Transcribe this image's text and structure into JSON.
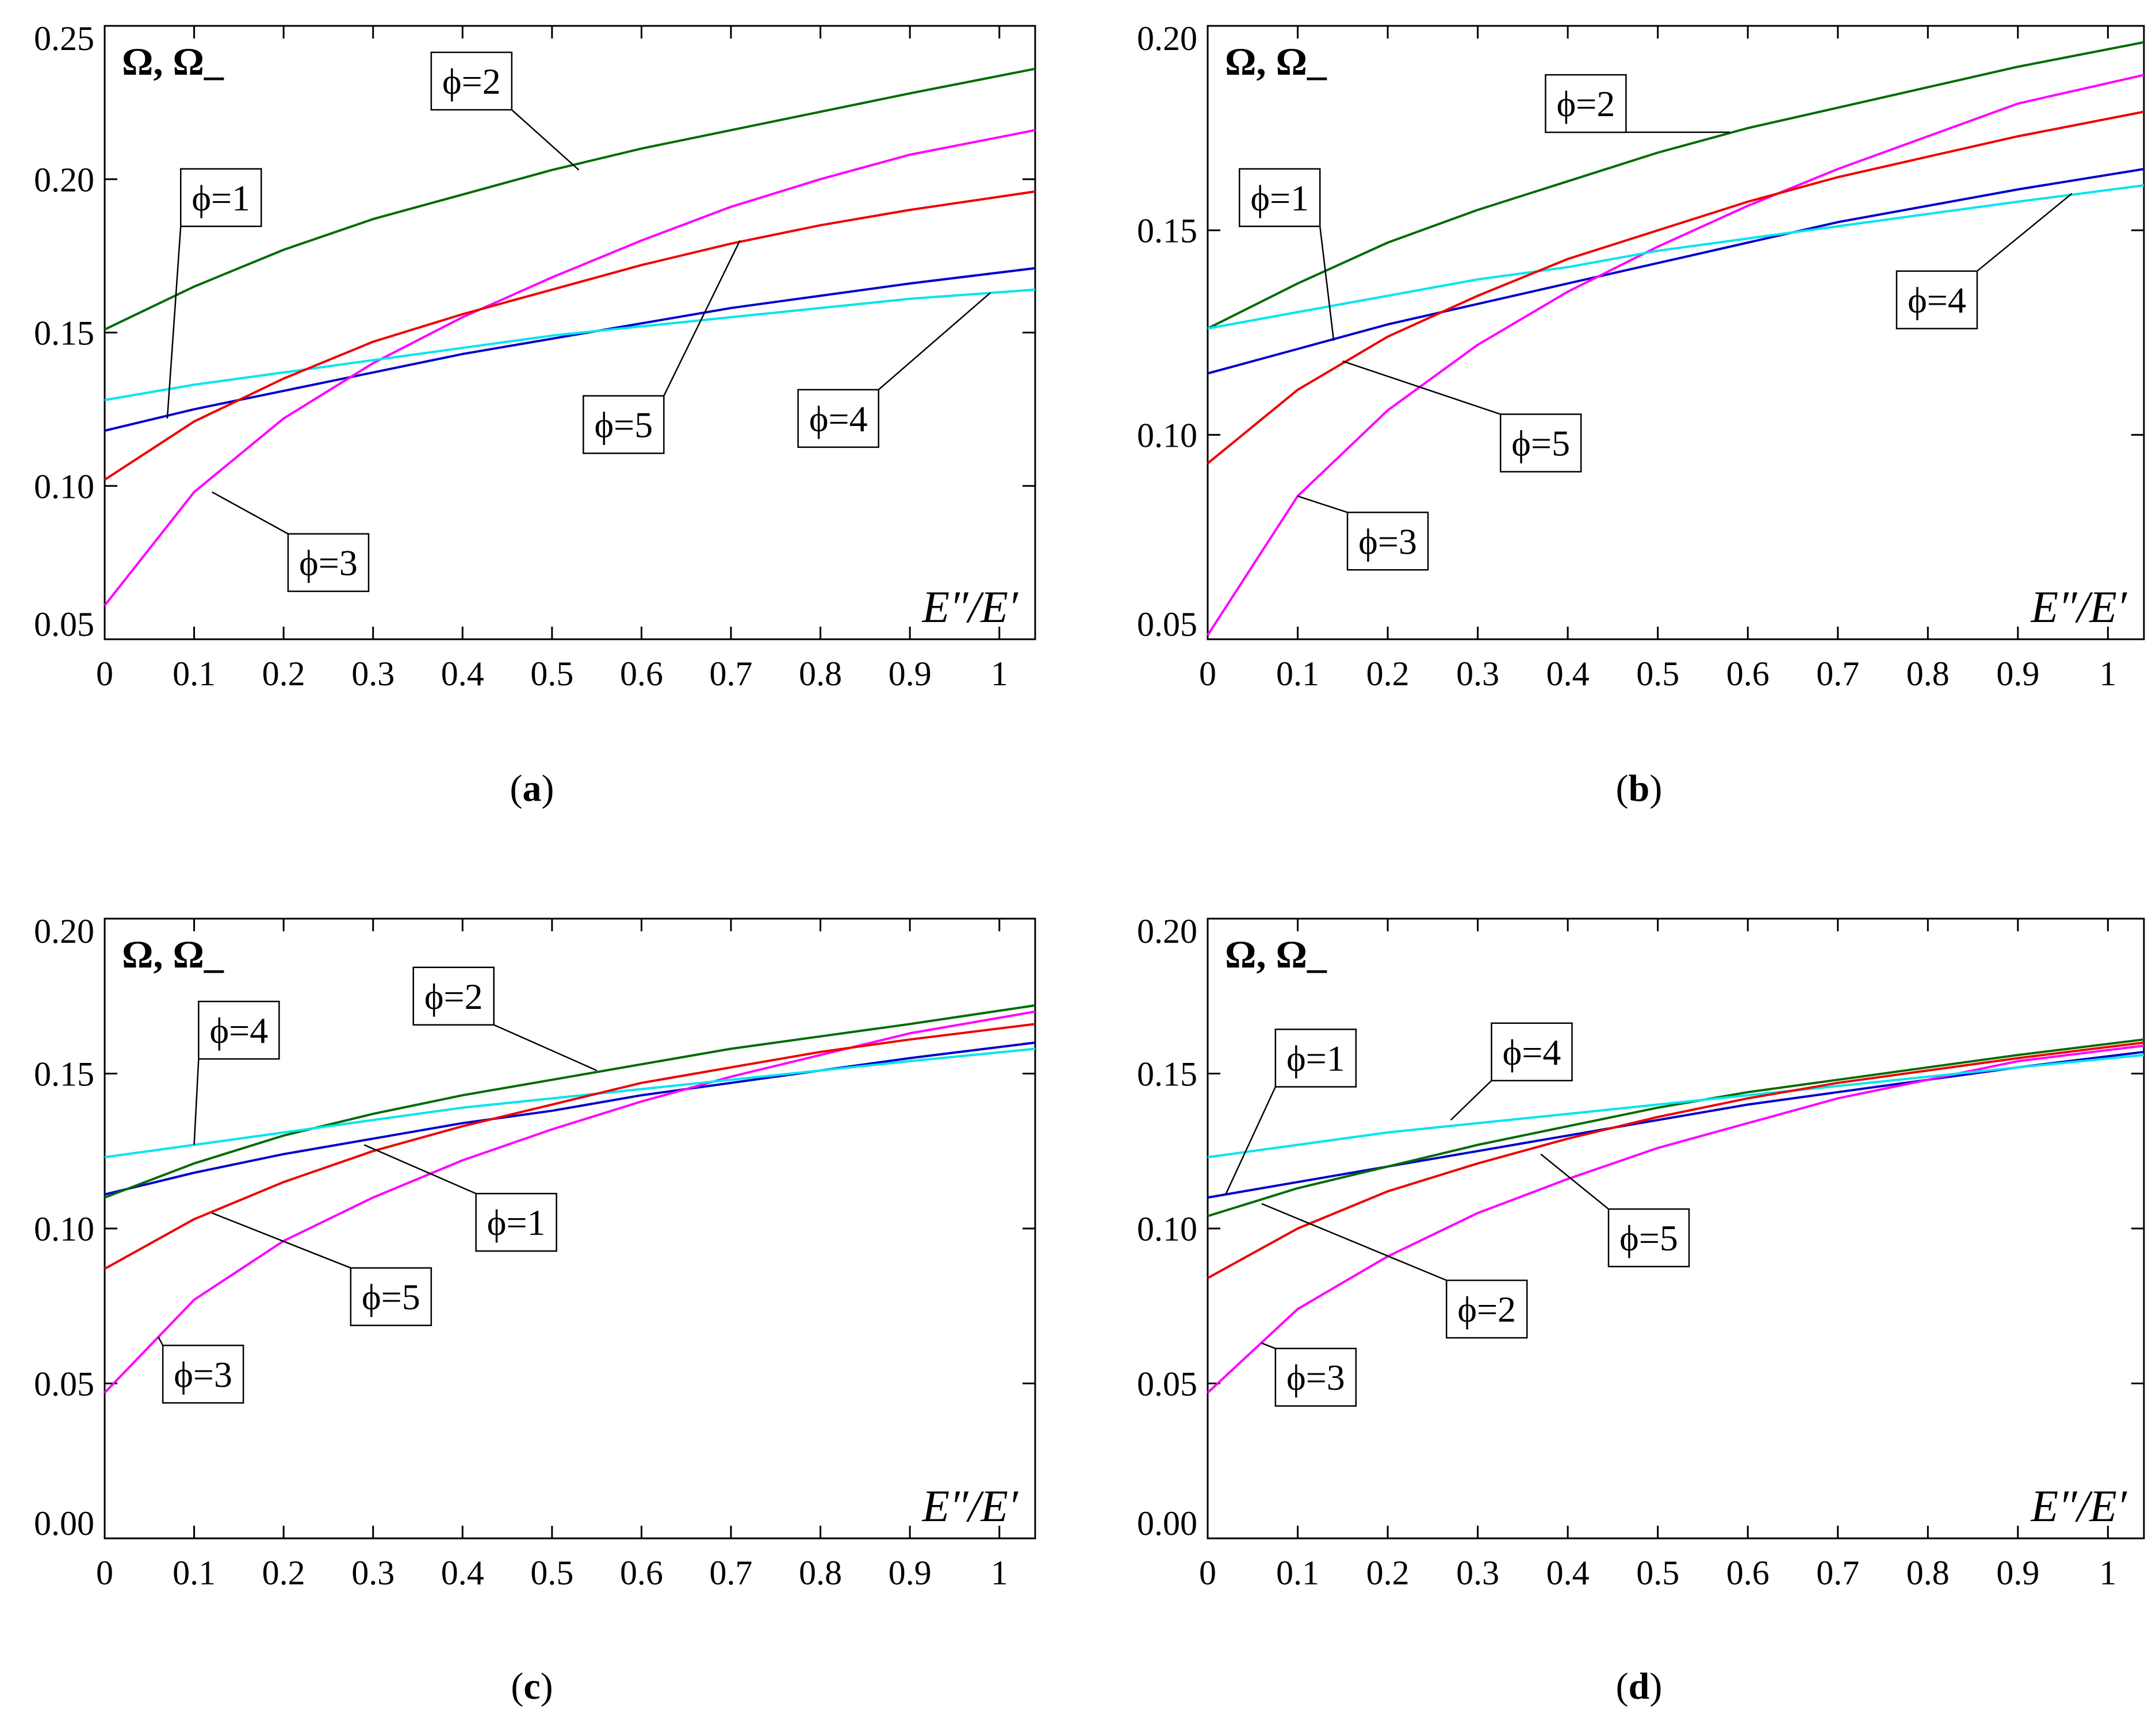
{
  "chart_data": [
    {
      "panel": "a",
      "caption": "(a)",
      "caption_letter": "a",
      "type": "line",
      "title": "Ω, Ω_",
      "xlabel": "E″/E′",
      "xlim": [
        0,
        1.04
      ],
      "ylim": [
        0.05,
        0.25
      ],
      "yticks": [
        "0.05",
        "0.10",
        "0.15",
        "0.20",
        "0.25"
      ],
      "xticks": [
        "0",
        "0.1",
        "0.2",
        "0.3",
        "0.4",
        "0.5",
        "0.6",
        "0.7",
        "0.8",
        "0.9",
        "1"
      ],
      "x": [
        0,
        0.1,
        0.2,
        0.3,
        0.4,
        0.5,
        0.6,
        0.7,
        0.8,
        0.9,
        1.04
      ],
      "series": [
        {
          "name": "ϕ=1",
          "color": "#0000cc",
          "values": [
            0.118,
            0.125,
            0.131,
            0.137,
            0.143,
            0.148,
            0.153,
            0.158,
            0.162,
            0.166,
            0.171
          ]
        },
        {
          "name": "ϕ=2",
          "color": "#006b00",
          "values": [
            0.151,
            0.165,
            0.177,
            0.187,
            0.195,
            0.203,
            0.21,
            0.216,
            0.222,
            0.228,
            0.236
          ]
        },
        {
          "name": "ϕ=3",
          "color": "#ff00ff",
          "values": [
            0.061,
            0.098,
            0.122,
            0.14,
            0.155,
            0.168,
            0.18,
            0.191,
            0.2,
            0.208,
            0.216
          ]
        },
        {
          "name": "ϕ=4",
          "color": "#00e5ee",
          "values": [
            0.128,
            0.133,
            0.137,
            0.141,
            0.145,
            0.149,
            0.152,
            0.155,
            0.158,
            0.161,
            0.164
          ]
        },
        {
          "name": "ϕ=5",
          "color": "#ee0000",
          "values": [
            0.102,
            0.121,
            0.135,
            0.147,
            0.156,
            0.164,
            0.172,
            0.179,
            0.185,
            0.19,
            0.196
          ]
        }
      ],
      "annotations": [
        {
          "text": "ϕ=1",
          "series": "ϕ=1",
          "x": 0.07,
          "y": 0.122,
          "tx": 0.13,
          "ty": 0.194
        },
        {
          "text": "ϕ=2",
          "series": "ϕ=2",
          "x": 0.53,
          "y": 0.203,
          "tx": 0.41,
          "ty": 0.232
        },
        {
          "text": "ϕ=3",
          "series": "ϕ=3",
          "x": 0.12,
          "y": 0.098,
          "tx": 0.25,
          "ty": 0.075
        },
        {
          "text": "ϕ=4",
          "series": "ϕ=4",
          "x": 0.99,
          "y": 0.163,
          "tx": 0.82,
          "ty": 0.122
        },
        {
          "text": "ϕ=5",
          "series": "ϕ=5",
          "x": 0.71,
          "y": 0.18,
          "tx": 0.58,
          "ty": 0.12
        }
      ]
    },
    {
      "panel": "b",
      "caption": "(b)",
      "caption_letter": "b",
      "type": "line",
      "title": "Ω, Ω_",
      "xlabel": "E″/E′",
      "xlim": [
        0,
        1.04
      ],
      "ylim": [
        0.05,
        0.2
      ],
      "yticks": [
        "0.05",
        "0.10",
        "0.15",
        "0.20"
      ],
      "xticks": [
        "0",
        "0.1",
        "0.2",
        "0.3",
        "0.4",
        "0.5",
        "0.6",
        "0.7",
        "0.8",
        "0.9",
        "1"
      ],
      "x": [
        0,
        0.1,
        0.2,
        0.3,
        0.4,
        0.5,
        0.6,
        0.7,
        0.8,
        0.9,
        1.04
      ],
      "series": [
        {
          "name": "ϕ=1",
          "color": "#0000cc",
          "values": [
            0.115,
            0.121,
            0.127,
            0.132,
            0.137,
            0.142,
            0.147,
            0.152,
            0.156,
            0.16,
            0.165
          ]
        },
        {
          "name": "ϕ=2",
          "color": "#006b00",
          "values": [
            0.126,
            0.137,
            0.147,
            0.155,
            0.162,
            0.169,
            0.175,
            0.18,
            0.185,
            0.19,
            0.196
          ]
        },
        {
          "name": "ϕ=3",
          "color": "#ff00ff",
          "values": [
            0.051,
            0.085,
            0.106,
            0.122,
            0.135,
            0.146,
            0.156,
            0.165,
            0.173,
            0.181,
            0.188
          ]
        },
        {
          "name": "ϕ=4",
          "color": "#00e5ee",
          "values": [
            0.126,
            0.13,
            0.134,
            0.138,
            0.141,
            0.145,
            0.148,
            0.151,
            0.154,
            0.157,
            0.161
          ]
        },
        {
          "name": "ϕ=5",
          "color": "#ee0000",
          "values": [
            0.093,
            0.111,
            0.124,
            0.134,
            0.143,
            0.15,
            0.157,
            0.163,
            0.168,
            0.173,
            0.179
          ]
        }
      ],
      "annotations": [
        {
          "text": "ϕ=1",
          "series": "ϕ=1",
          "x": 0.14,
          "y": 0.123,
          "tx": 0.08,
          "ty": 0.158
        },
        {
          "text": "ϕ=2",
          "series": "ϕ=2",
          "x": 0.58,
          "y": 0.174,
          "tx": 0.42,
          "ty": 0.181
        },
        {
          "text": "ϕ=3",
          "series": "ϕ=3",
          "x": 0.1,
          "y": 0.085,
          "tx": 0.2,
          "ty": 0.074
        },
        {
          "text": "ϕ=4",
          "series": "ϕ=4",
          "x": 0.96,
          "y": 0.159,
          "tx": 0.81,
          "ty": 0.133
        },
        {
          "text": "ϕ=5",
          "series": "ϕ=5",
          "x": 0.15,
          "y": 0.118,
          "tx": 0.37,
          "ty": 0.098
        }
      ]
    },
    {
      "panel": "c",
      "caption": "(c)",
      "caption_letter": "c",
      "type": "line",
      "title": "Ω, Ω_",
      "xlabel": "E″/E′",
      "xlim": [
        0,
        1.04
      ],
      "ylim": [
        0.0,
        0.2
      ],
      "yticks": [
        "0.00",
        "0.05",
        "0.10",
        "0.15",
        "0.20"
      ],
      "xticks": [
        "0",
        "0.1",
        "0.2",
        "0.3",
        "0.4",
        "0.5",
        "0.6",
        "0.7",
        "0.8",
        "0.9",
        "1"
      ],
      "x": [
        0,
        0.1,
        0.2,
        0.3,
        0.4,
        0.5,
        0.6,
        0.7,
        0.8,
        0.9,
        1.04
      ],
      "series": [
        {
          "name": "ϕ=1",
          "color": "#0000cc",
          "values": [
            0.111,
            0.118,
            0.124,
            0.129,
            0.134,
            0.138,
            0.143,
            0.147,
            0.151,
            0.155,
            0.16
          ]
        },
        {
          "name": "ϕ=2",
          "color": "#006b00",
          "values": [
            0.11,
            0.121,
            0.13,
            0.137,
            0.143,
            0.148,
            0.153,
            0.158,
            0.162,
            0.166,
            0.172
          ]
        },
        {
          "name": "ϕ=3",
          "color": "#ff00ff",
          "values": [
            0.047,
            0.077,
            0.096,
            0.11,
            0.122,
            0.132,
            0.141,
            0.149,
            0.156,
            0.163,
            0.17
          ]
        },
        {
          "name": "ϕ=4",
          "color": "#00e5ee",
          "values": [
            0.123,
            0.127,
            0.131,
            0.135,
            0.139,
            0.142,
            0.145,
            0.148,
            0.151,
            0.154,
            0.158
          ]
        },
        {
          "name": "ϕ=5",
          "color": "#ee0000",
          "values": [
            0.087,
            0.103,
            0.115,
            0.125,
            0.133,
            0.14,
            0.147,
            0.152,
            0.157,
            0.161,
            0.166
          ]
        }
      ],
      "annotations": [
        {
          "text": "ϕ=1",
          "series": "ϕ=1",
          "x": 0.29,
          "y": 0.127,
          "tx": 0.46,
          "ty": 0.102
        },
        {
          "text": "ϕ=2",
          "series": "ϕ=2",
          "x": 0.55,
          "y": 0.151,
          "tx": 0.39,
          "ty": 0.175
        },
        {
          "text": "ϕ=3",
          "series": "ϕ=3",
          "x": 0.06,
          "y": 0.065,
          "tx": 0.11,
          "ty": 0.053
        },
        {
          "text": "ϕ=4",
          "series": "ϕ=4",
          "x": 0.1,
          "y": 0.127,
          "tx": 0.15,
          "ty": 0.164
        },
        {
          "text": "ϕ=5",
          "series": "ϕ=5",
          "x": 0.12,
          "y": 0.105,
          "tx": 0.32,
          "ty": 0.078
        }
      ]
    },
    {
      "panel": "d",
      "caption": "(d)",
      "caption_letter": "d",
      "type": "line",
      "title": "Ω, Ω_",
      "xlabel": "E″/E′",
      "xlim": [
        0,
        1.04
      ],
      "ylim": [
        0.0,
        0.2
      ],
      "yticks": [
        "0.00",
        "0.05",
        "0.10",
        "0.15",
        "0.20"
      ],
      "xticks": [
        "0",
        "0.1",
        "0.2",
        "0.3",
        "0.4",
        "0.5",
        "0.6",
        "0.7",
        "0.8",
        "0.9",
        "1"
      ],
      "x": [
        0,
        0.1,
        0.2,
        0.3,
        0.4,
        0.5,
        0.6,
        0.7,
        0.8,
        0.9,
        1.04
      ],
      "series": [
        {
          "name": "ϕ=1",
          "color": "#0000cc",
          "values": [
            0.11,
            0.115,
            0.12,
            0.125,
            0.13,
            0.135,
            0.14,
            0.144,
            0.148,
            0.152,
            0.157
          ]
        },
        {
          "name": "ϕ=2",
          "color": "#006b00",
          "values": [
            0.104,
            0.113,
            0.12,
            0.127,
            0.133,
            0.139,
            0.144,
            0.148,
            0.152,
            0.156,
            0.161
          ]
        },
        {
          "name": "ϕ=3",
          "color": "#ff00ff",
          "values": [
            0.047,
            0.074,
            0.091,
            0.105,
            0.116,
            0.126,
            0.134,
            0.142,
            0.148,
            0.154,
            0.159
          ]
        },
        {
          "name": "ϕ=4",
          "color": "#00e5ee",
          "values": [
            0.123,
            0.127,
            0.131,
            0.134,
            0.137,
            0.14,
            0.143,
            0.146,
            0.149,
            0.152,
            0.156
          ]
        },
        {
          "name": "ϕ=5",
          "color": "#ee0000",
          "values": [
            0.084,
            0.1,
            0.112,
            0.121,
            0.129,
            0.136,
            0.142,
            0.147,
            0.151,
            0.155,
            0.16
          ]
        }
      ],
      "annotations": [
        {
          "text": "ϕ=1",
          "series": "ϕ=1",
          "x": 0.02,
          "y": 0.111,
          "tx": 0.12,
          "ty": 0.155
        },
        {
          "text": "ϕ=2",
          "series": "ϕ=2",
          "x": 0.06,
          "y": 0.108,
          "tx": 0.31,
          "ty": 0.074
        },
        {
          "text": "ϕ=3",
          "series": "ϕ=3",
          "x": 0.06,
          "y": 0.063,
          "tx": 0.12,
          "ty": 0.052
        },
        {
          "text": "ϕ=4",
          "series": "ϕ=4",
          "x": 0.27,
          "y": 0.135,
          "tx": 0.36,
          "ty": 0.157
        },
        {
          "text": "ϕ=5",
          "series": "ϕ=5",
          "x": 0.37,
          "y": 0.124,
          "tx": 0.49,
          "ty": 0.097
        }
      ]
    }
  ]
}
